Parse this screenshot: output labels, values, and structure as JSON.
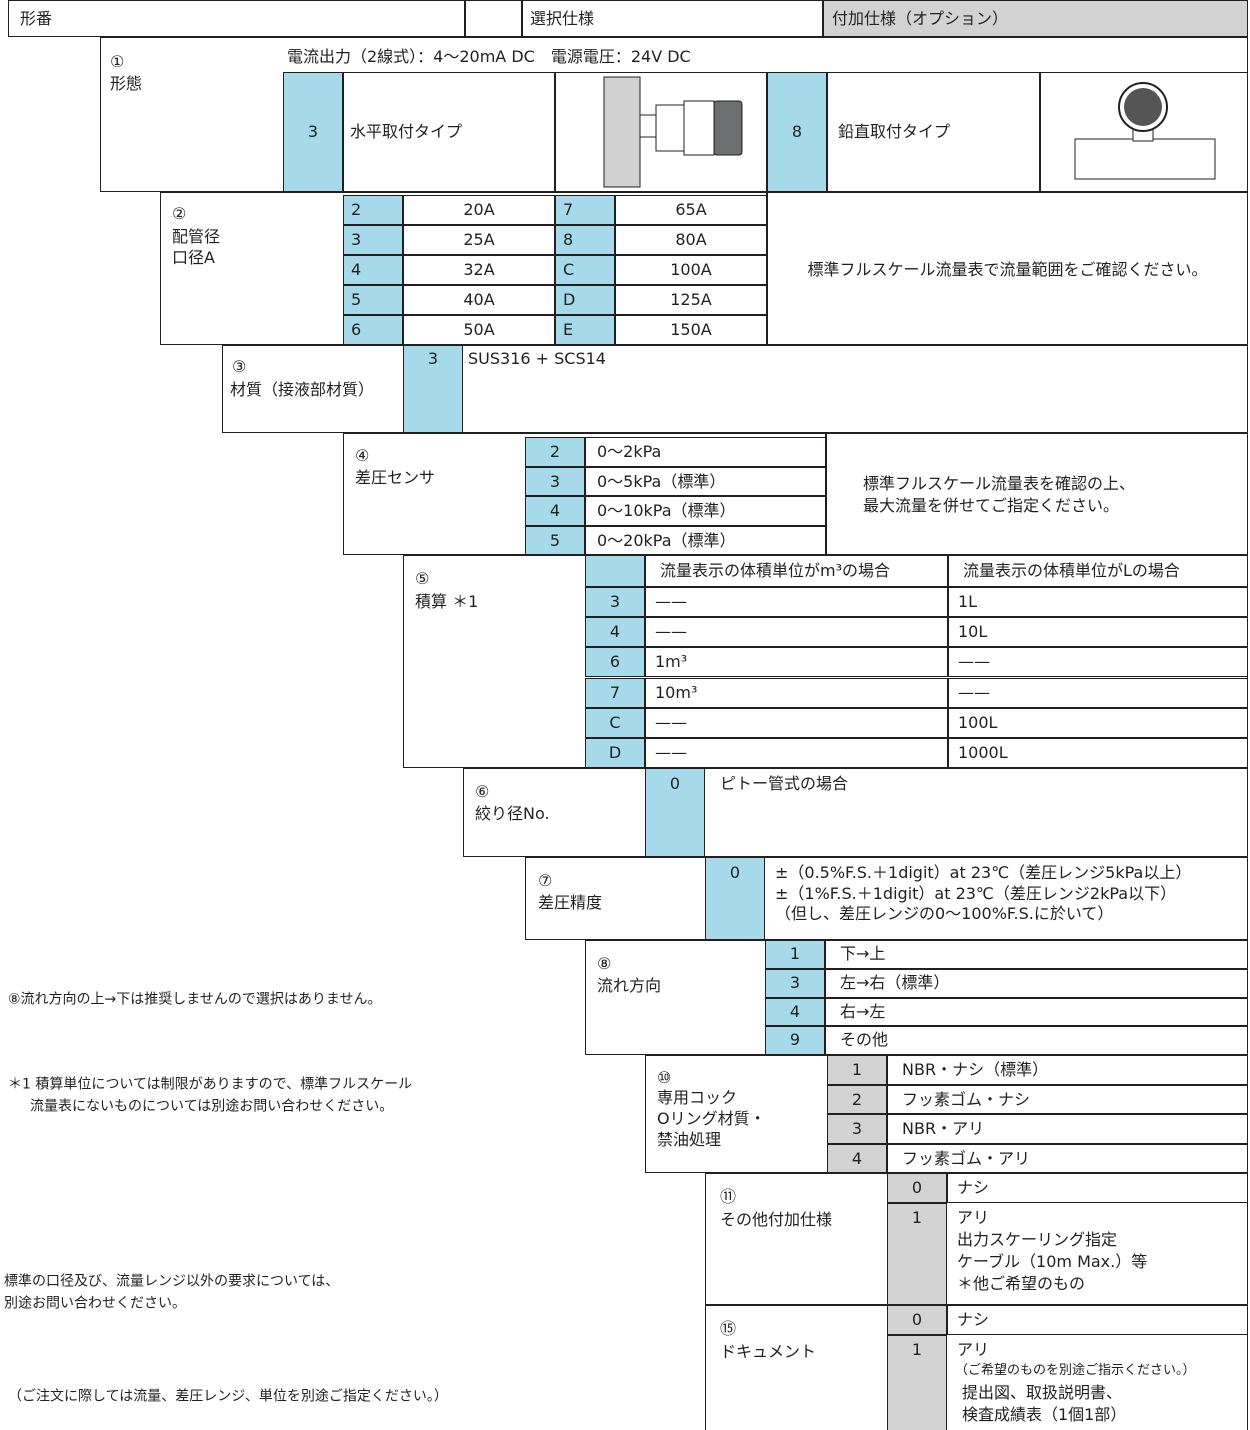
{
  "header": {
    "model": "形番",
    "selected": "選択仕様",
    "optional": "付加仕様（オプション）"
  },
  "form": {
    "num": "①",
    "label": "形態",
    "power": "電流出力（2線式）：4〜20mA DC　電源電圧：24V DC",
    "options": [
      {
        "code": "3",
        "text": "水平取付タイプ"
      },
      {
        "code": "8",
        "text": "鉛直取付タイプ"
      }
    ]
  },
  "pipe": {
    "num": "②",
    "label": [
      "配管径",
      "口径A"
    ],
    "options": [
      {
        "code": "2",
        "size": "20A"
      },
      {
        "code": "3",
        "size": "25A"
      },
      {
        "code": "4",
        "size": "32A"
      },
      {
        "code": "5",
        "size": "40A"
      },
      {
        "code": "6",
        "size": "50A"
      },
      {
        "code": "7",
        "size": "65A"
      },
      {
        "code": "8",
        "size": "80A"
      },
      {
        "code": "C",
        "size": "100A"
      },
      {
        "code": "D",
        "size": "125A"
      },
      {
        "code": "E",
        "size": "150A"
      }
    ],
    "note": "標準フルスケール流量表で流量範囲をご確認ください。"
  },
  "material": {
    "num": "③",
    "label": "材質（接液部材質）",
    "options": [
      {
        "code": "3",
        "text": "SUS316 + SCS14"
      }
    ]
  },
  "sensor": {
    "num": "④",
    "label": "差圧センサ",
    "options": [
      {
        "code": "2",
        "text": "0〜2kPa"
      },
      {
        "code": "3",
        "text": "0〜5kPa（標準）"
      },
      {
        "code": "4",
        "text": "0〜10kPa（標準）"
      },
      {
        "code": "5",
        "text": "0〜20kPa（標準）"
      }
    ],
    "note": [
      "標準フルスケール流量表を確認の上、",
      "最大流量を併せてご指定ください。"
    ]
  },
  "totalizer": {
    "num": "⑤",
    "label": "積算 ＊1",
    "columns": [
      "流量表示の体積単位がm³の場合",
      "流量表示の体積単位がLの場合"
    ],
    "rows": [
      {
        "code": "3",
        "m3": "——",
        "liter": "1L"
      },
      {
        "code": "4",
        "m3": "——",
        "liter": "10L"
      },
      {
        "code": "6",
        "m3": "1m³",
        "liter": "——"
      },
      {
        "code": "7",
        "m3": "10m³",
        "liter": "——"
      },
      {
        "code": "C",
        "m3": "——",
        "liter": "100L"
      },
      {
        "code": "D",
        "m3": "——",
        "liter": "1000L"
      }
    ]
  },
  "orifice": {
    "num": "⑥",
    "label": "絞り径No.",
    "options": [
      {
        "code": "0",
        "text": "ピトー管式の場合"
      }
    ]
  },
  "accuracy": {
    "num": "⑦",
    "label": "差圧精度",
    "options": [
      {
        "code": "0",
        "lines": [
          "±（0.5%F.S.＋1digit）at 23℃（差圧レンジ5kPa以上）",
          "±（1%F.S.＋1digit）at 23℃（差圧レンジ2kPa以下）",
          "（但し、差圧レンジの0〜100%F.S.に於いて）"
        ]
      }
    ]
  },
  "flow": {
    "num": "⑧",
    "label": "流れ方向",
    "options": [
      {
        "code": "1",
        "text": "下→上"
      },
      {
        "code": "3",
        "text": "左→右（標準）"
      },
      {
        "code": "4",
        "text": "右→左"
      },
      {
        "code": "9",
        "text": "その他"
      }
    ]
  },
  "cock": {
    "num": "⑩",
    "label": [
      "専用コック",
      "Oリング材質・",
      "禁油処理"
    ],
    "options": [
      {
        "code": "1",
        "text": "NBR・ナシ（標準）"
      },
      {
        "code": "2",
        "text": "フッ素ゴム・ナシ"
      },
      {
        "code": "3",
        "text": "NBR・アリ"
      },
      {
        "code": "4",
        "text": "フッ素ゴム・アリ"
      }
    ]
  },
  "other": {
    "num": "⑪",
    "label": "その他付加仕様",
    "options": [
      {
        "code": "0",
        "lines": [
          "ナシ"
        ]
      },
      {
        "code": "1",
        "lines": [
          "アリ",
          "出力スケーリング指定",
          "ケーブル（10m Max.）等",
          "＊他ご希望のもの"
        ]
      }
    ]
  },
  "document": {
    "num": "⑮",
    "label": "ドキュメント",
    "options": [
      {
        "code": "0",
        "lines": [
          "ナシ"
        ]
      },
      {
        "code": "1",
        "lines": [
          "アリ",
          "（ご希望のものを別途ご指示ください。）",
          "提出図、取扱説明書、",
          "検査成績表（1個1部）"
        ]
      }
    ]
  },
  "notes": {
    "flow": "⑧流れ方向の上→下は推奨しませんので選択はありません。",
    "totalizer": [
      "＊1 積算単位については制限がありますので、標準フルスケール",
      "流量表にないものについては別途お問い合わせください。"
    ],
    "size": [
      "標準の口径及び、流量レンジ以外の要求については、",
      "別途お問い合わせください。"
    ],
    "order": "（ご注文に際しては流量、差圧レンジ、単位を別途ご指定ください。）"
  }
}
